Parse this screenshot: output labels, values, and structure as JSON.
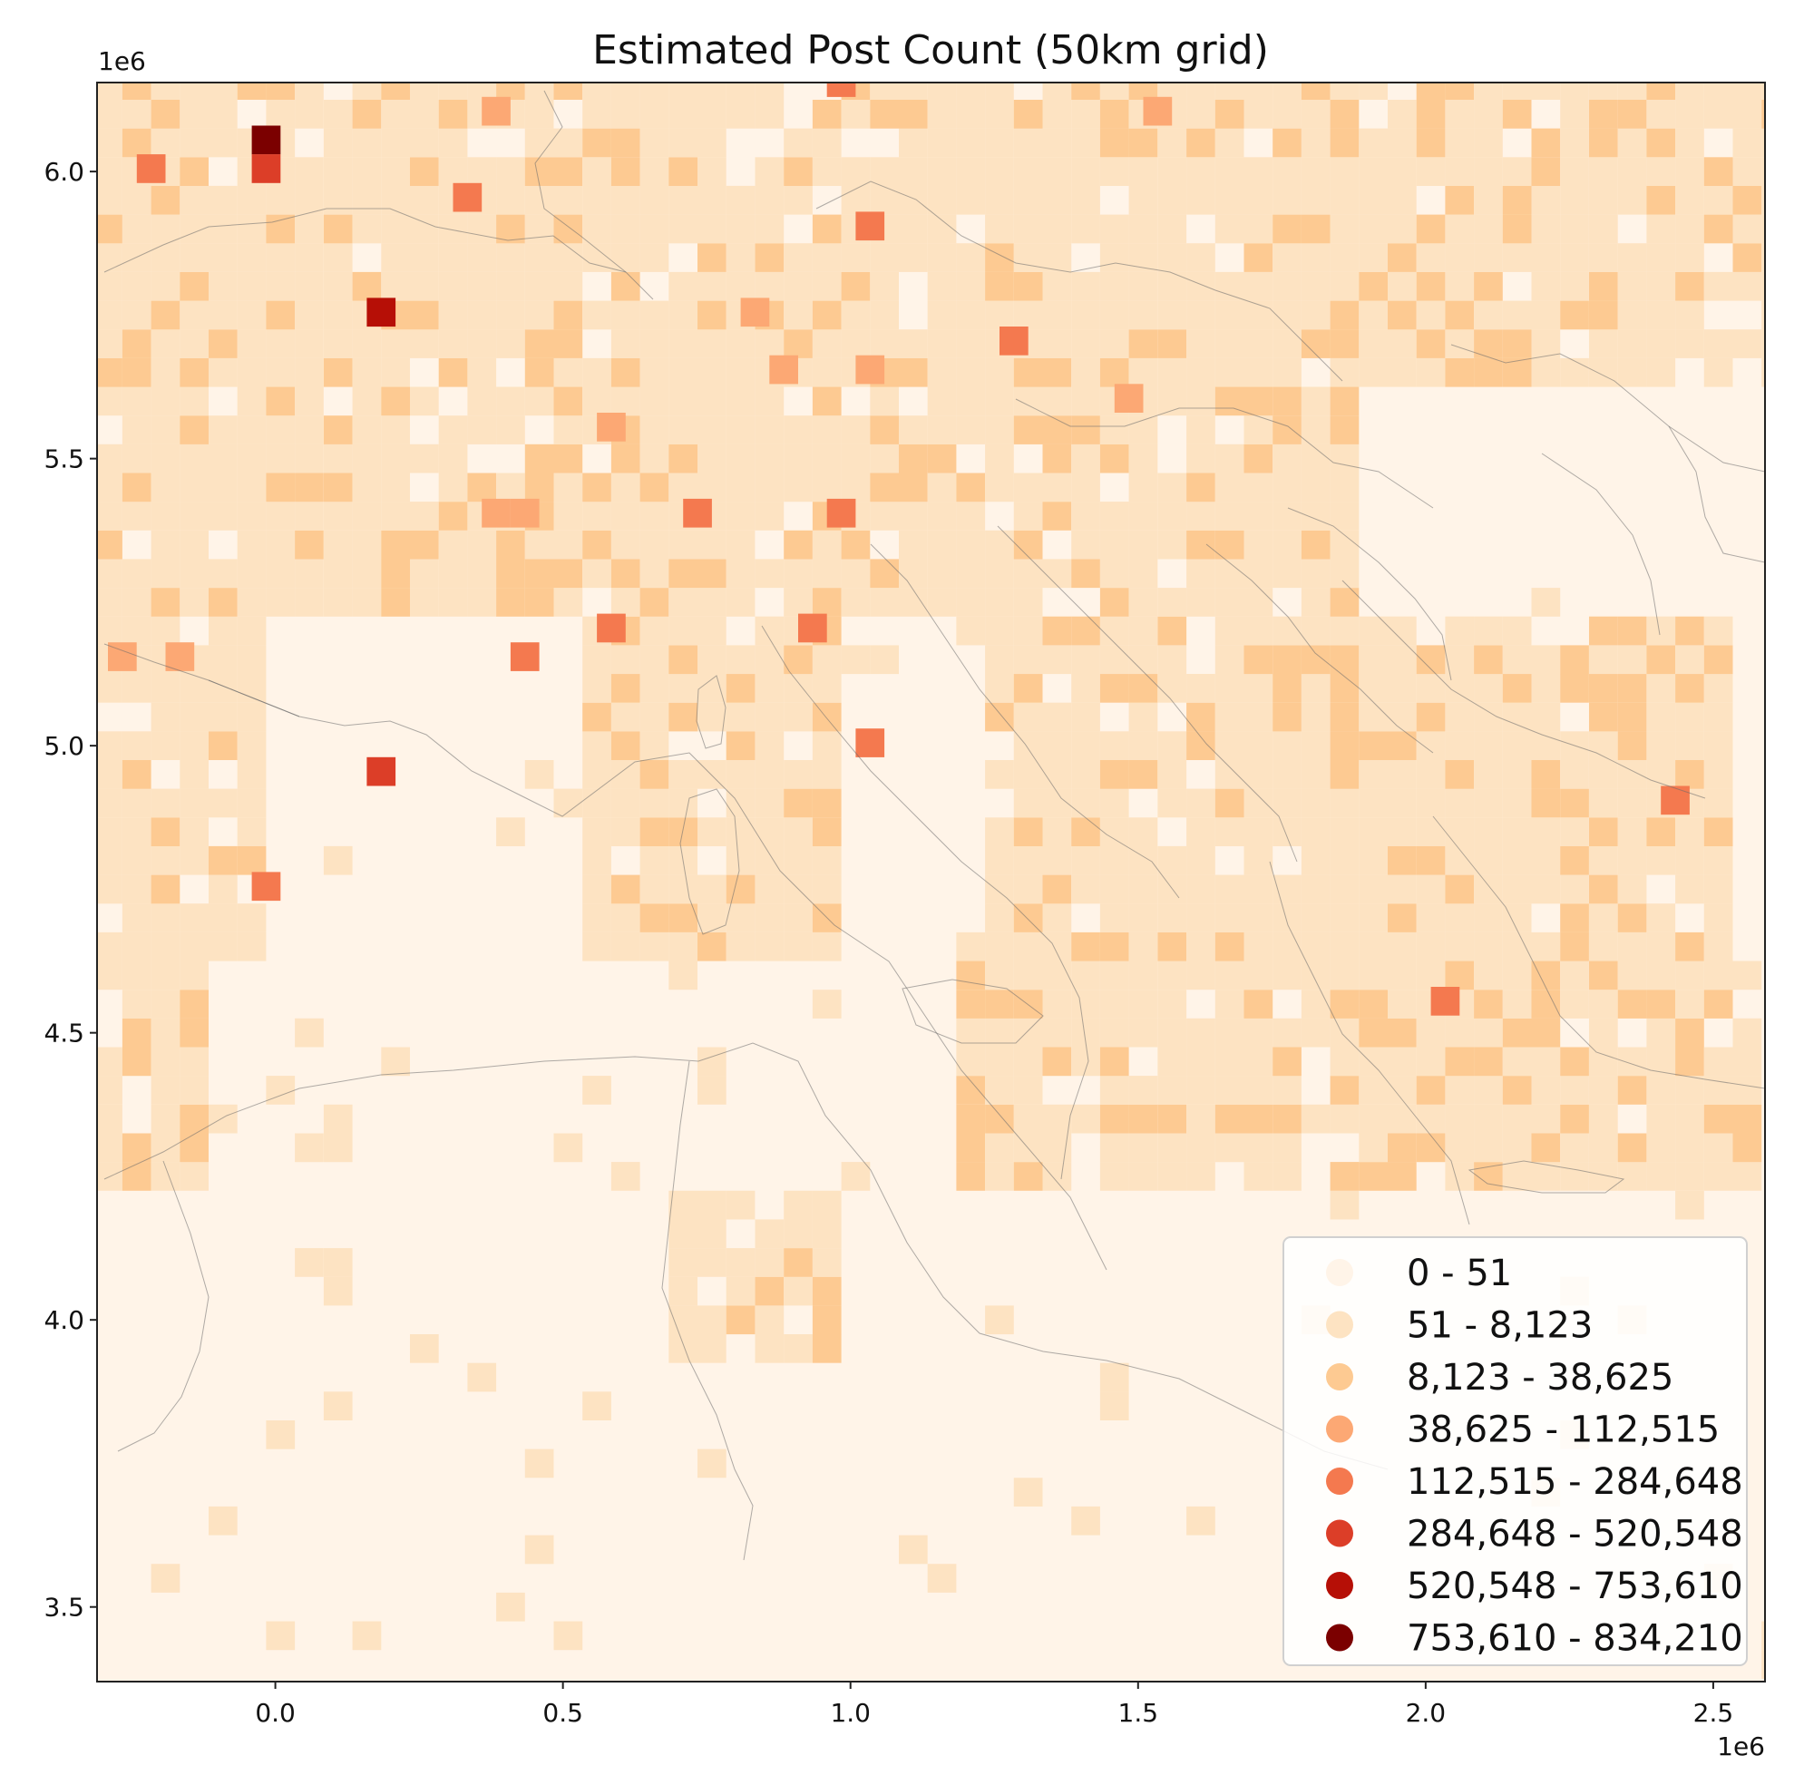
{
  "chart_data": {
    "type": "heatmap",
    "title": "Estimated Post Count (50km grid)",
    "xlabel": "",
    "ylabel": "",
    "x_offset_label": "1e6",
    "y_offset_label": "1e6",
    "xlim": [
      -0.31,
      2.59
    ],
    "ylim": [
      3.37,
      6.155
    ],
    "x_ticks": [
      {
        "value": 0.0,
        "label": "0.0"
      },
      {
        "value": 0.5,
        "label": "0.5"
      },
      {
        "value": 1.0,
        "label": "1.0"
      },
      {
        "value": 1.5,
        "label": "1.5"
      },
      {
        "value": 2.0,
        "label": "2.0"
      },
      {
        "value": 2.5,
        "label": "2.5"
      }
    ],
    "y_ticks": [
      {
        "value": 6.0,
        "label": "6.0"
      },
      {
        "value": 5.5,
        "label": "5.5"
      },
      {
        "value": 5.0,
        "label": "5.0"
      },
      {
        "value": 4.5,
        "label": "4.5"
      },
      {
        "value": 4.0,
        "label": "4.0"
      },
      {
        "value": 3.5,
        "label": "3.5"
      }
    ],
    "colormap": "OrRd",
    "classes": [
      {
        "label": "0 - 51",
        "color": "#fff4e8"
      },
      {
        "label": "51 - 8,123",
        "color": "#fde3c2"
      },
      {
        "label": "8,123 - 38,625",
        "color": "#fdca92"
      },
      {
        "label": "38,625 - 112,515",
        "color": "#fca874"
      },
      {
        "label": "112,515 - 284,648",
        "color": "#f4794f"
      },
      {
        "label": "284,648 - 520,548",
        "color": "#dc3e28"
      },
      {
        "label": "520,548 - 753,610",
        "color": "#b60f06"
      },
      {
        "label": "753,610 - 834,210",
        "color": "#7b0000"
      }
    ],
    "legend_position": "lower-right",
    "hotspots": [
      {
        "x": -0.016,
        "y": 6.055,
        "class": 7
      },
      {
        "x": -0.016,
        "y": 6.005,
        "class": 5
      },
      {
        "x": 0.184,
        "y": 5.755,
        "class": 6
      },
      {
        "x": 0.184,
        "y": 4.955,
        "class": 5
      },
      {
        "x": -0.216,
        "y": 6.005,
        "class": 4
      },
      {
        "x": 0.334,
        "y": 5.955,
        "class": 4
      },
      {
        "x": 0.734,
        "y": 5.405,
        "class": 4
      },
      {
        "x": 0.984,
        "y": 5.405,
        "class": 4
      },
      {
        "x": 1.284,
        "y": 5.705,
        "class": 4
      },
      {
        "x": 1.034,
        "y": 5.905,
        "class": 4
      },
      {
        "x": 0.434,
        "y": 5.155,
        "class": 4
      },
      {
        "x": 0.584,
        "y": 5.205,
        "class": 4
      },
      {
        "x": 0.934,
        "y": 5.205,
        "class": 4
      },
      {
        "x": 1.034,
        "y": 5.005,
        "class": 4
      },
      {
        "x": 2.434,
        "y": 4.905,
        "class": 4
      },
      {
        "x": 2.034,
        "y": 4.555,
        "class": 4
      },
      {
        "x": -0.016,
        "y": 4.755,
        "class": 4
      },
      {
        "x": 0.984,
        "y": 6.155,
        "class": 4
      },
      {
        "x": 0.384,
        "y": 6.105,
        "class": 3
      },
      {
        "x": 1.534,
        "y": 6.105,
        "class": 3
      },
      {
        "x": 0.884,
        "y": 5.655,
        "class": 3
      },
      {
        "x": 1.034,
        "y": 5.655,
        "class": 3
      },
      {
        "x": 1.484,
        "y": 5.605,
        "class": 3
      },
      {
        "x": 0.834,
        "y": 5.755,
        "class": 3
      },
      {
        "x": 0.584,
        "y": 5.555,
        "class": 3
      },
      {
        "x": 0.434,
        "y": 5.405,
        "class": 3
      },
      {
        "x": 0.384,
        "y": 5.405,
        "class": 3
      },
      {
        "x": -0.166,
        "y": 5.155,
        "class": 3
      },
      {
        "x": -0.266,
        "y": 5.155,
        "class": 3
      }
    ]
  }
}
